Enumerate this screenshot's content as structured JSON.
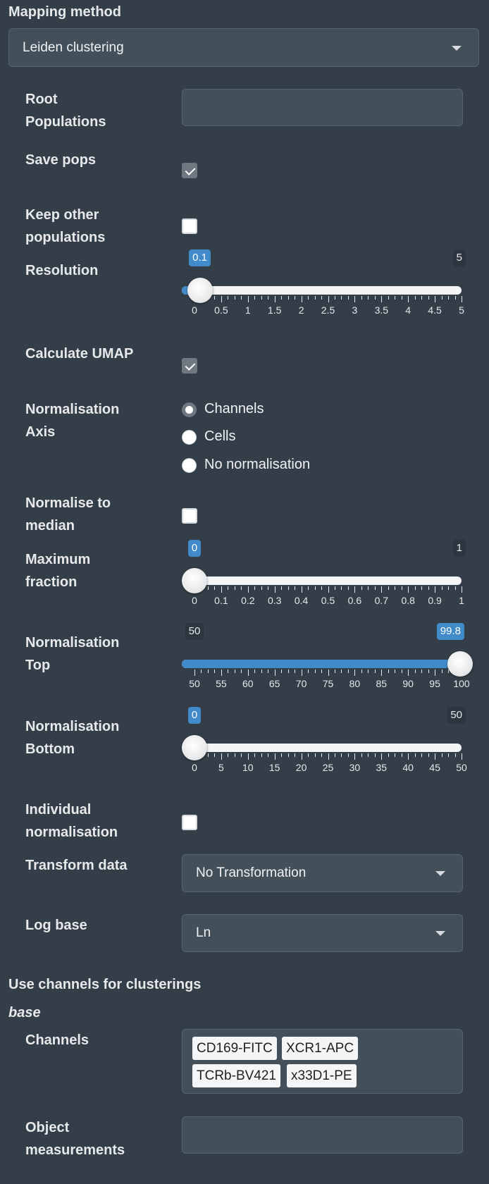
{
  "mapping": {
    "heading": "Mapping method",
    "selected": "Leiden clustering"
  },
  "root_populations": {
    "label_line1": "Root",
    "label_line2": "Populations",
    "value": ""
  },
  "save_pops": {
    "label": "Save pops",
    "checked": true
  },
  "keep_other": {
    "label_line1": "Keep other",
    "label_line2": "populations",
    "checked": false
  },
  "resolution": {
    "label": "Resolution",
    "min": 0,
    "max": 5,
    "value": 0.1,
    "value_text": "0.1",
    "max_text": "5",
    "tick_labels": [
      "0",
      "0.5",
      "1",
      "1.5",
      "2",
      "2.5",
      "3",
      "3.5",
      "4",
      "4.5",
      "5"
    ]
  },
  "calc_umap": {
    "label": "Calculate UMAP",
    "checked": true
  },
  "norm_axis": {
    "label_line1": "Normalisation",
    "label_line2": "Axis",
    "options": [
      "Channels",
      "Cells",
      "No normalisation"
    ],
    "selected_index": 0
  },
  "normalise_median": {
    "label_line1": "Normalise to",
    "label_line2": "median",
    "checked": false
  },
  "max_fraction": {
    "label_line1": "Maximum",
    "label_line2": "fraction",
    "min": 0,
    "max": 1,
    "value": 0,
    "value_text": "0",
    "max_text": "1",
    "tick_labels": [
      "0",
      "0.1",
      "0.2",
      "0.3",
      "0.4",
      "0.5",
      "0.6",
      "0.7",
      "0.8",
      "0.9",
      "1"
    ]
  },
  "norm_top": {
    "label_line1": "Normalisation",
    "label_line2": "Top",
    "min": 50,
    "max": 100,
    "value": 99.8,
    "value_text": "99.8",
    "min_text": "50",
    "tick_labels": [
      "50",
      "55",
      "60",
      "65",
      "70",
      "75",
      "80",
      "85",
      "90",
      "95",
      "100"
    ]
  },
  "norm_bottom": {
    "label_line1": "Normalisation",
    "label_line2": "Bottom",
    "min": 0,
    "max": 50,
    "value": 0,
    "value_text": "0",
    "max_text": "50",
    "tick_labels": [
      "0",
      "5",
      "10",
      "15",
      "20",
      "25",
      "30",
      "35",
      "40",
      "45",
      "50"
    ]
  },
  "individual_norm": {
    "label_line1": "Individual",
    "label_line2": "normalisation",
    "checked": false
  },
  "transform": {
    "label": "Transform data",
    "selected": "No Transformation"
  },
  "log_base": {
    "label": "Log base",
    "selected": "Ln"
  },
  "channels_section": {
    "heading": "Use channels for clusterings",
    "subheading": "base",
    "channels_label": "Channels",
    "tags": [
      "CD169-FITC",
      "XCR1-APC",
      "TCRb-BV421",
      "x33D1-PE"
    ]
  },
  "object_measurements": {
    "label_line1": "Object",
    "label_line2": "measurements",
    "value": ""
  }
}
